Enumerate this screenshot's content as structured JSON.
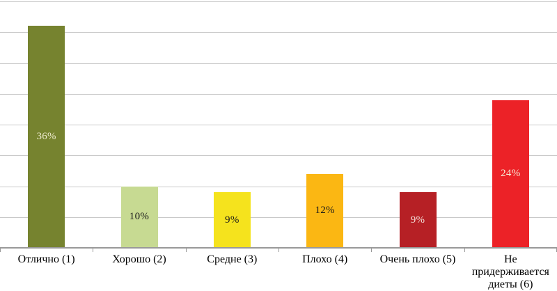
{
  "chart_data": {
    "type": "bar",
    "title": "",
    "xlabel": "",
    "ylabel": "",
    "categories": [
      "Отлично (1)",
      "Хорошо (2)",
      "Средне (3)",
      "Плохо (4)",
      "Очень плохо (5)",
      "Не придерживается диеты (6)"
    ],
    "values": [
      36,
      10,
      9,
      12,
      9,
      24
    ],
    "value_labels": [
      "36%",
      "10%",
      "9%",
      "12%",
      "9%",
      "24%"
    ],
    "bar_colors": [
      "#76832f",
      "#c7da92",
      "#f5e31d",
      "#fbb713",
      "#b62025",
      "#ec2227"
    ],
    "value_label_colors": [
      "#edeacd",
      "#1a1a1a",
      "#1a1a1a",
      "#1a1a1a",
      "#f2dcd6",
      "#f7ead6"
    ],
    "ylim": [
      0,
      40
    ],
    "grid_step": 5,
    "grid": "on",
    "legend": "none",
    "y_tick_labels_visible": false,
    "grid_color": "#c8c8c8",
    "axis_color": "#999999",
    "background_color": "#ffffff",
    "label_text_color": "#000000"
  }
}
